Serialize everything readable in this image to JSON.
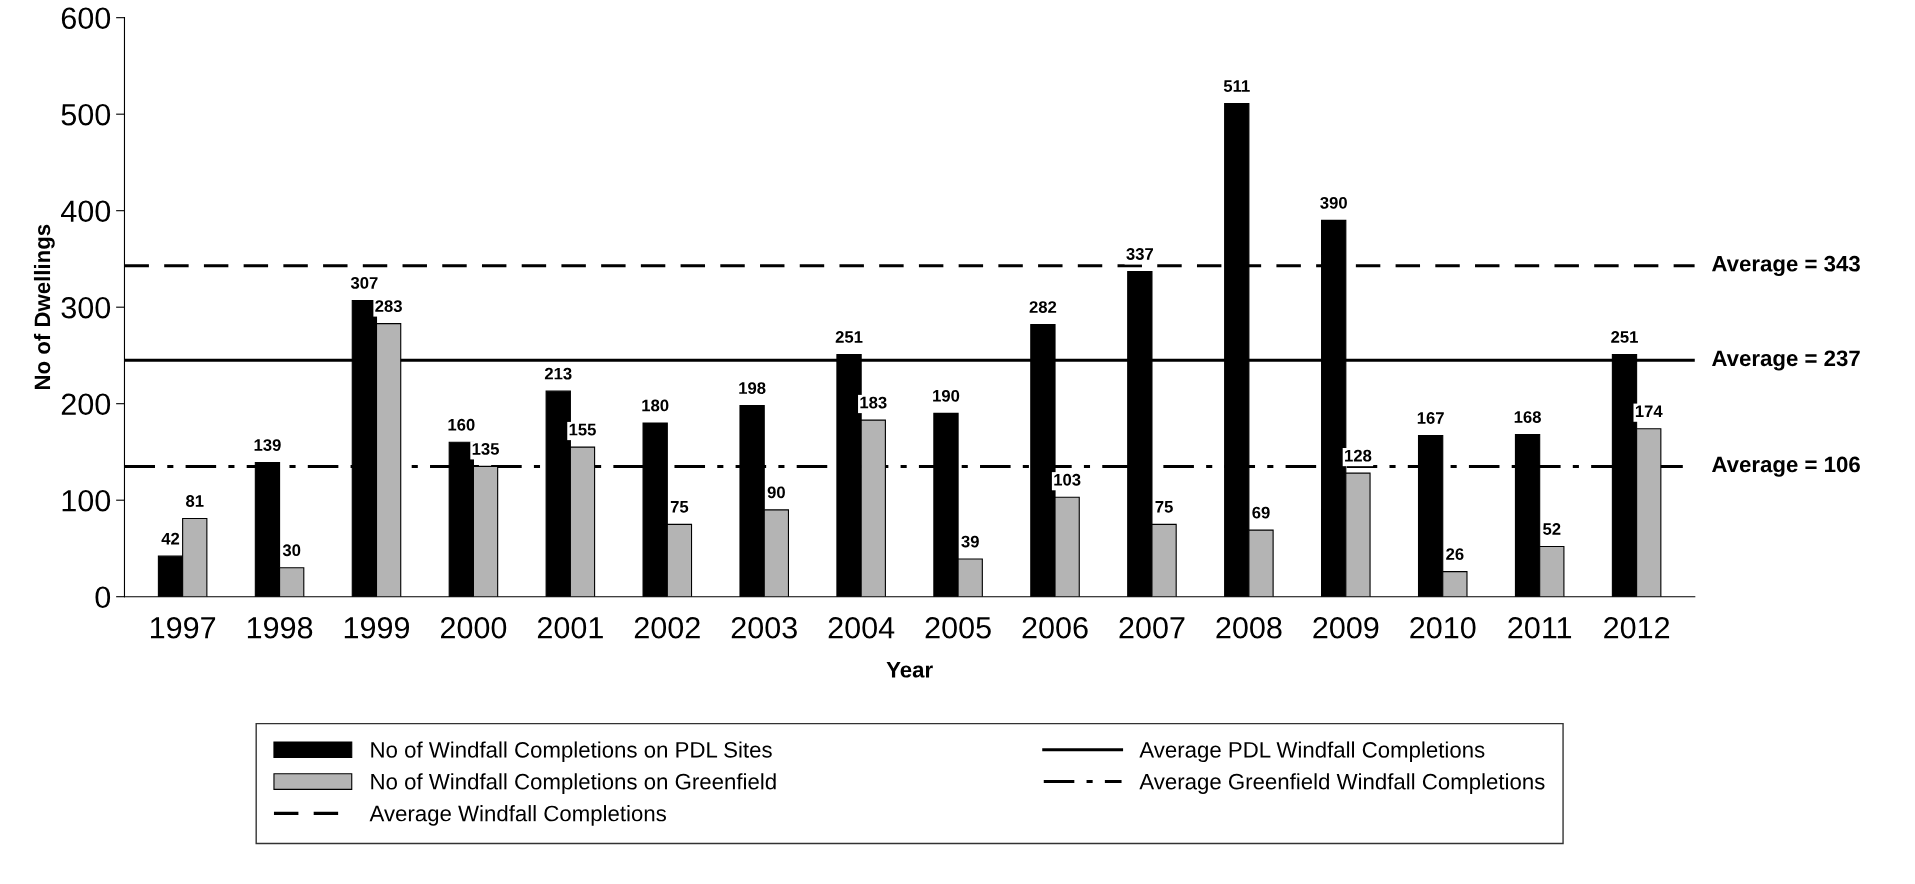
{
  "chart_data": {
    "type": "bar",
    "xlabel": "Year",
    "ylabel": "No of Dwellings",
    "categories": [
      "1997",
      "1998",
      "1999",
      "2000",
      "2001",
      "2002",
      "2003",
      "2004",
      "2005",
      "2006",
      "2007",
      "2008",
      "2009",
      "2010",
      "2011",
      "2012"
    ],
    "series": [
      {
        "name": "No of Windfall Completions on PDL Sites",
        "color": "#000000",
        "values": [
          42,
          139,
          307,
          160,
          213,
          180,
          198,
          251,
          190,
          282,
          337,
          511,
          390,
          167,
          168,
          251
        ],
        "value_labels": [
          "42",
          "139",
          "307",
          "160",
          "213",
          "180",
          "198",
          "251",
          "190",
          "282",
          "337",
          "511",
          "390",
          "167",
          "168",
          "251"
        ]
      },
      {
        "name": "No of Windfall Completions on Greenfield",
        "color": "#b4b4b4",
        "values": [
          81,
          30,
          283,
          135,
          155,
          75,
          90,
          183,
          39,
          103,
          75,
          69,
          128,
          26,
          52,
          174
        ],
        "value_labels": [
          "81",
          "30",
          "283",
          "135",
          "155",
          "75",
          "90",
          "183",
          "39",
          "103",
          "75",
          "69",
          "128",
          "26",
          "52",
          "174"
        ]
      }
    ],
    "ref_lines": [
      {
        "axis": "y",
        "value": 343,
        "label": "Average Windfall Completions",
        "line_style": "dashed",
        "color": "#000000"
      },
      {
        "axis": "y",
        "value": 245,
        "label": "Average PDL Windfall Completions",
        "line_style": "solid",
        "color": "#000000"
      },
      {
        "axis": "y",
        "value": 135,
        "label": "Average Greenfield Windfall Completions",
        "line_style": "dashdot",
        "color": "#000000"
      }
    ],
    "annotations": [
      "Average = 343",
      "Average = 237",
      "Average = 106"
    ],
    "ylim": [
      0,
      600
    ],
    "yticks": [
      0,
      100,
      200,
      300,
      400,
      500,
      600
    ],
    "grid": false,
    "legend": "bottom"
  }
}
